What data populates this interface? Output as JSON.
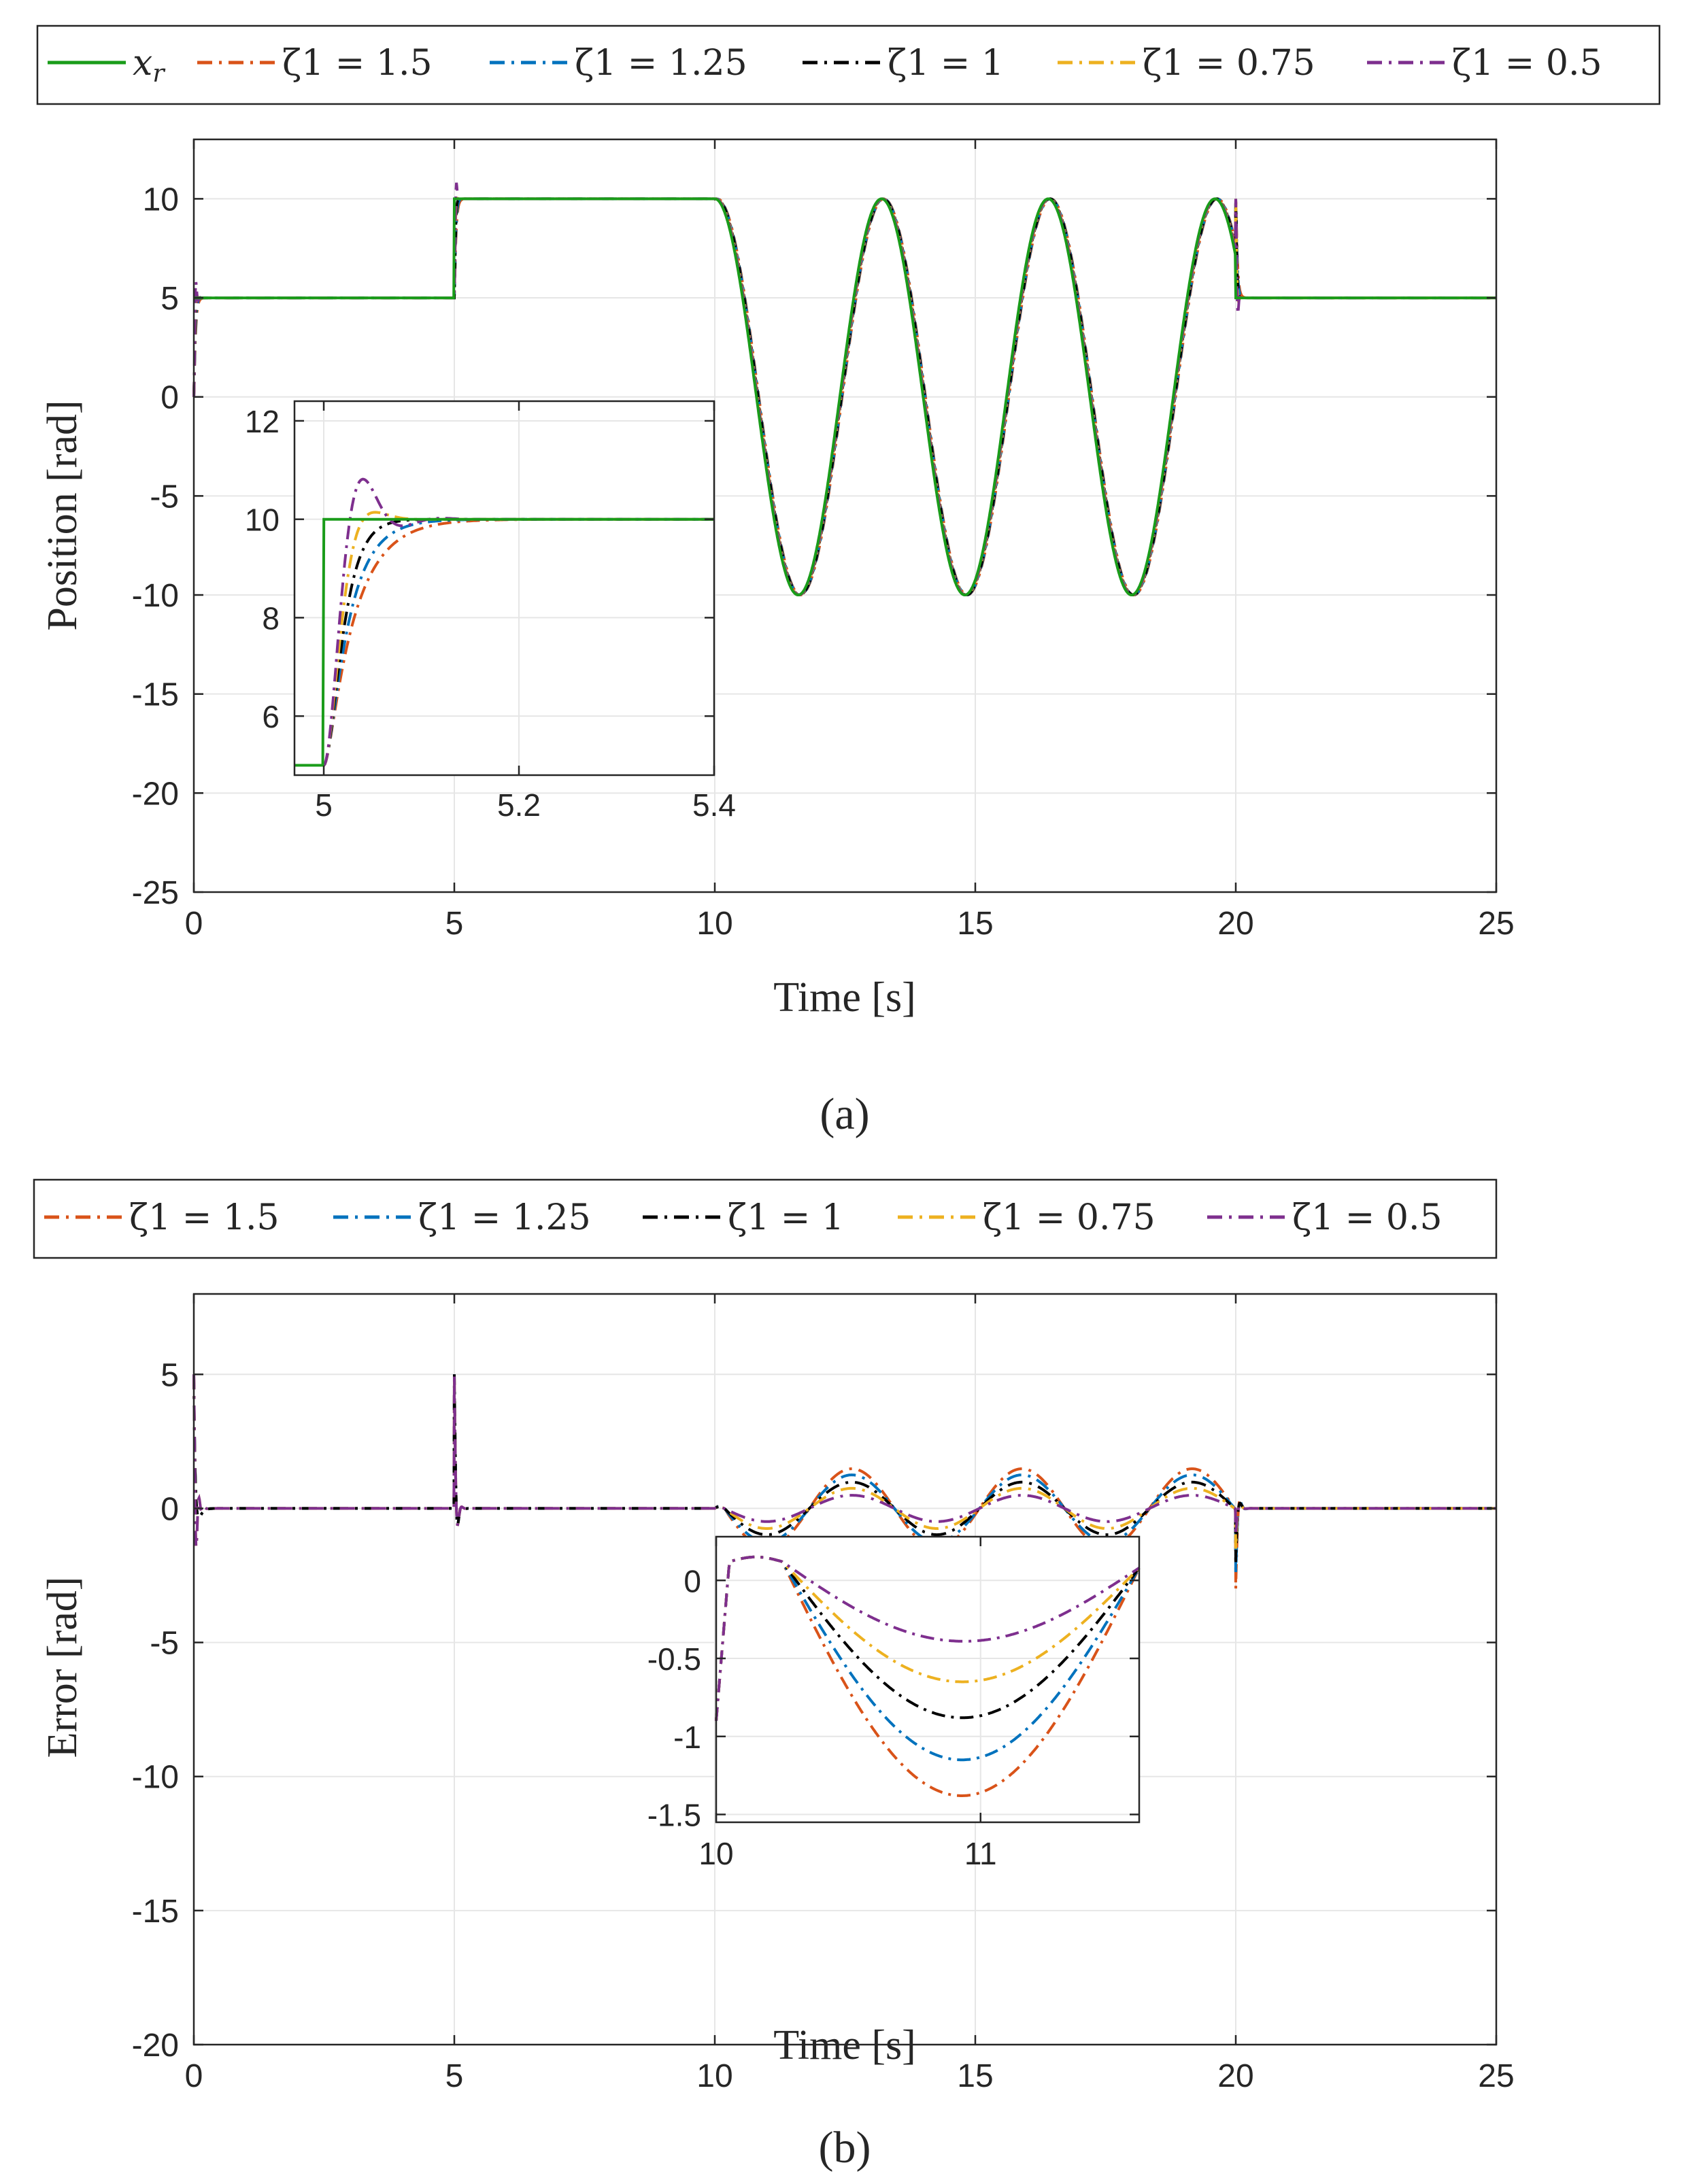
{
  "chart_data": [
    {
      "id": "a",
      "type": "line",
      "caption": "(a)",
      "xlabel": "Time [s]",
      "ylabel": "Position [rad]",
      "xlim": [
        0,
        25
      ],
      "ylim": [
        -25,
        13
      ],
      "xticks": [
        0,
        5,
        10,
        15,
        20,
        25
      ],
      "yticks": [
        10,
        5,
        0,
        -5,
        -10,
        -15,
        -20,
        -25
      ],
      "xtick_labels": [
        "0",
        "5",
        "10",
        "15",
        "20",
        "25"
      ],
      "ytick_labels": [
        "10",
        "5",
        "0",
        "-5",
        "-10",
        "-15",
        "-20",
        "-25"
      ],
      "legend": [
        "x_r",
        "ζ1 = 1.5",
        "ζ1 = 1.25",
        "ζ1 = 1",
        "ζ1 = 0.75",
        "ζ1 = 0.5"
      ],
      "reference": {
        "name": "x_r",
        "segments": [
          {
            "t": [
              0,
              5
            ],
            "value": 5
          },
          {
            "t": [
              5,
              10
            ],
            "value": 10
          },
          {
            "t": [
              10,
              20
            ],
            "form": "10*cos(2*pi*(t-10)/3.2)"
          },
          {
            "t": [
              20,
              25
            ],
            "value": 5
          }
        ]
      },
      "series": [
        {
          "name": "ζ1 = 1.5",
          "zeta": 1.5,
          "color": "#d95319"
        },
        {
          "name": "ζ1 = 1.25",
          "zeta": 1.25,
          "color": "#0072bd"
        },
        {
          "name": "ζ1 = 1",
          "zeta": 1,
          "color": "#000000"
        },
        {
          "name": "ζ1 = 0.75",
          "zeta": 0.75,
          "color": "#edb120"
        },
        {
          "name": "ζ1 = 0.5",
          "zeta": 0.5,
          "color": "#7e2f8e"
        }
      ],
      "inset": {
        "xlim": [
          4.97,
          5.4
        ],
        "ylim": [
          4.8,
          12.4
        ],
        "xticks": [
          5,
          5.2,
          5.4
        ],
        "yticks": [
          6,
          8,
          10,
          12
        ],
        "xtick_labels": [
          "5",
          "5.2",
          "5.4"
        ],
        "ytick_labels": [
          "6",
          "8",
          "10",
          "12"
        ]
      }
    },
    {
      "id": "b",
      "type": "line",
      "caption": "(b)",
      "xlabel": "Time [s]",
      "ylabel": "Error [rad]",
      "xlim": [
        0,
        25
      ],
      "ylim": [
        -20,
        8
      ],
      "xticks": [
        0,
        5,
        10,
        15,
        20,
        25
      ],
      "yticks": [
        5,
        0,
        -5,
        -10,
        -15,
        -20
      ],
      "xtick_labels": [
        "0",
        "5",
        "10",
        "15",
        "20",
        "25"
      ],
      "ytick_labels": [
        "5",
        "0",
        "-5",
        "-10",
        "-15",
        "-20"
      ],
      "legend": [
        "ζ1 = 1.5",
        "ζ1 = 1.25",
        "ζ1 = 1",
        "ζ1 = 0.75",
        "ζ1 = 0.5"
      ],
      "series": [
        {
          "name": "ζ1 = 1.5",
          "zeta": 1.5,
          "peak_error": -1.48,
          "color": "#d95319"
        },
        {
          "name": "ζ1 = 1.25",
          "zeta": 1.25,
          "peak_error": -1.25,
          "color": "#0072bd"
        },
        {
          "name": "ζ1 = 1",
          "zeta": 1,
          "peak_error": -0.98,
          "color": "#000000"
        },
        {
          "name": "ζ1 = 0.75",
          "zeta": 0.75,
          "peak_error": -0.75,
          "color": "#edb120"
        },
        {
          "name": "ζ1 = 0.5",
          "zeta": 0.5,
          "peak_error": -0.49,
          "color": "#7e2f8e"
        }
      ],
      "inset": {
        "xlim": [
          10,
          11.6
        ],
        "ylim": [
          -1.55,
          0.28
        ],
        "xticks": [
          10,
          11
        ],
        "yticks": [
          0,
          -0.5,
          -1,
          -1.5
        ],
        "xtick_labels": [
          "10",
          "11"
        ],
        "ytick_labels": [
          "0",
          "-0.5",
          "-1",
          "-1.5"
        ]
      }
    }
  ]
}
